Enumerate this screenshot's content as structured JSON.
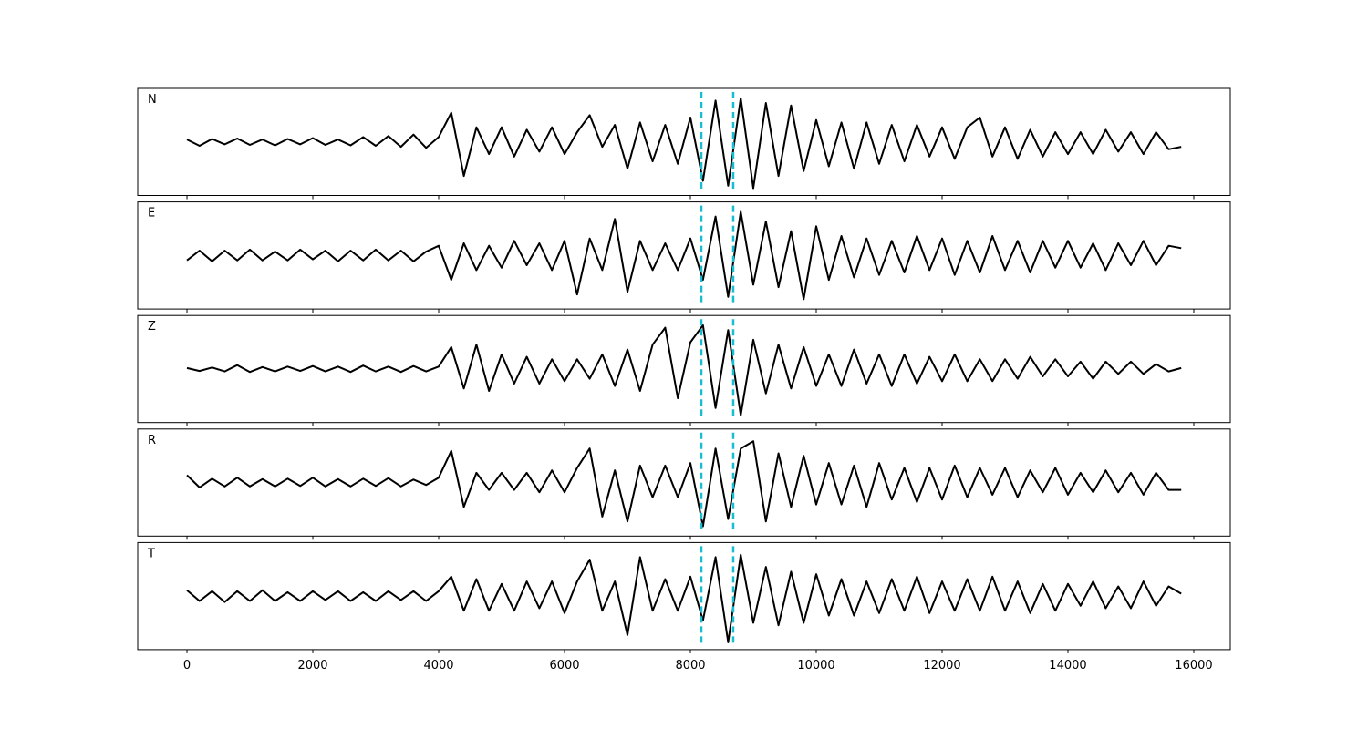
{
  "chart_data": {
    "type": "line",
    "x": [
      0,
      200,
      400,
      600,
      800,
      1000,
      1200,
      1400,
      1600,
      1800,
      2000,
      2200,
      2400,
      2600,
      2800,
      3000,
      3200,
      3400,
      3600,
      3800,
      4000,
      4200,
      4400,
      4600,
      4800,
      5000,
      5200,
      5400,
      5600,
      5800,
      6000,
      6200,
      6400,
      6600,
      6800,
      7000,
      7200,
      7400,
      7600,
      7800,
      8000,
      8200,
      8400,
      8600,
      8800,
      9000,
      9200,
      9400,
      9600,
      9800,
      10000,
      10200,
      10400,
      10600,
      10800,
      11000,
      11200,
      11400,
      11600,
      11800,
      12000,
      12200,
      12400,
      12600,
      12800,
      13000,
      13200,
      13400,
      13600,
      13800,
      14000,
      14200,
      14400,
      14600,
      14800,
      15000,
      15200,
      15400,
      15600,
      15800
    ],
    "xlim": [
      -783,
      16580
    ],
    "xticks": [
      0,
      2000,
      4000,
      6000,
      8000,
      10000,
      12000,
      14000,
      16000
    ],
    "ylim": [
      -1.1,
      1.1
    ],
    "line_color": "#000000",
    "vlines": [
      8174,
      8681
    ],
    "vline_color": "#17becf",
    "series": [
      {
        "name": "N",
        "values": [
          0.05,
          -0.08,
          0.06,
          -0.05,
          0.07,
          -0.06,
          0.05,
          -0.07,
          0.06,
          -0.05,
          0.08,
          -0.06,
          0.05,
          -0.07,
          0.1,
          -0.08,
          0.12,
          -0.1,
          0.15,
          -0.12,
          0.1,
          0.6,
          -0.7,
          0.3,
          -0.25,
          0.3,
          -0.3,
          0.25,
          -0.2,
          0.3,
          -0.25,
          0.2,
          0.55,
          -0.1,
          0.35,
          -0.55,
          0.4,
          -0.4,
          0.35,
          -0.45,
          0.5,
          -0.8,
          0.85,
          -0.9,
          0.9,
          -0.95,
          0.8,
          -0.7,
          0.75,
          -0.6,
          0.45,
          -0.5,
          0.4,
          -0.55,
          0.4,
          -0.45,
          0.35,
          -0.4,
          0.35,
          -0.3,
          0.3,
          -0.35,
          0.3,
          0.5,
          -0.3,
          0.3,
          -0.35,
          0.25,
          -0.3,
          0.2,
          -0.25,
          0.2,
          -0.25,
          0.25,
          -0.2,
          0.2,
          -0.25,
          0.2,
          -0.15,
          -0.1
        ]
      },
      {
        "name": "E",
        "values": [
          -0.1,
          0.1,
          -0.12,
          0.1,
          -0.1,
          0.12,
          -0.1,
          0.08,
          -0.1,
          0.12,
          -0.08,
          0.1,
          -0.12,
          0.1,
          -0.1,
          0.12,
          -0.1,
          0.1,
          -0.12,
          0.08,
          0.2,
          -0.5,
          0.25,
          -0.3,
          0.2,
          -0.25,
          0.3,
          -0.2,
          0.25,
          -0.3,
          0.3,
          -0.8,
          0.35,
          -0.3,
          0.75,
          -0.75,
          0.3,
          -0.3,
          0.25,
          -0.3,
          0.35,
          -0.5,
          0.8,
          -0.85,
          0.9,
          -0.6,
          0.7,
          -0.65,
          0.5,
          -0.9,
          0.6,
          -0.5,
          0.4,
          -0.45,
          0.35,
          -0.4,
          0.3,
          -0.35,
          0.4,
          -0.3,
          0.35,
          -0.4,
          0.3,
          -0.35,
          0.4,
          -0.3,
          0.3,
          -0.35,
          0.3,
          -0.25,
          0.3,
          -0.25,
          0.25,
          -0.3,
          0.25,
          -0.2,
          0.3,
          -0.2,
          0.2,
          0.15
        ]
      },
      {
        "name": "Z",
        "values": [
          0.02,
          -0.04,
          0.03,
          -0.05,
          0.08,
          -0.06,
          0.04,
          -0.05,
          0.05,
          -0.04,
          0.06,
          -0.05,
          0.05,
          -0.06,
          0.07,
          -0.05,
          0.05,
          -0.06,
          0.06,
          -0.05,
          0.05,
          0.45,
          -0.4,
          0.5,
          -0.45,
          0.3,
          -0.3,
          0.25,
          -0.3,
          0.2,
          -0.25,
          0.2,
          -0.2,
          0.3,
          -0.35,
          0.4,
          -0.45,
          0.5,
          0.85,
          -0.6,
          0.55,
          0.9,
          -0.8,
          0.8,
          -0.95,
          0.6,
          -0.5,
          0.5,
          -0.4,
          0.45,
          -0.35,
          0.3,
          -0.35,
          0.4,
          -0.3,
          0.3,
          -0.35,
          0.3,
          -0.3,
          0.25,
          -0.25,
          0.3,
          -0.25,
          0.2,
          -0.25,
          0.2,
          -0.2,
          0.25,
          -0.15,
          0.2,
          -0.15,
          0.15,
          -0.2,
          0.15,
          -0.1,
          0.15,
          -0.1,
          0.1,
          -0.05,
          0.02
        ]
      },
      {
        "name": "R",
        "values": [
          0.15,
          -0.1,
          0.08,
          -0.08,
          0.1,
          -0.08,
          0.07,
          -0.08,
          0.08,
          -0.07,
          0.1,
          -0.08,
          0.07,
          -0.08,
          0.08,
          -0.07,
          0.09,
          -0.08,
          0.06,
          -0.05,
          0.1,
          0.65,
          -0.5,
          0.2,
          -0.15,
          0.2,
          -0.15,
          0.2,
          -0.2,
          0.25,
          -0.2,
          0.3,
          0.7,
          -0.7,
          0.25,
          -0.8,
          0.35,
          -0.3,
          0.35,
          -0.3,
          0.4,
          -0.9,
          0.7,
          -0.75,
          0.7,
          0.85,
          -0.8,
          0.6,
          -0.5,
          0.55,
          -0.45,
          0.4,
          -0.45,
          0.35,
          -0.5,
          0.4,
          -0.35,
          0.3,
          -0.4,
          0.3,
          -0.35,
          0.35,
          -0.3,
          0.3,
          -0.25,
          0.3,
          -0.3,
          0.25,
          -0.2,
          0.3,
          -0.25,
          0.2,
          -0.2,
          0.25,
          -0.2,
          0.2,
          -0.25,
          0.2,
          -0.15,
          -0.15
        ]
      },
      {
        "name": "T",
        "values": [
          0.12,
          -0.1,
          0.1,
          -0.12,
          0.1,
          -0.1,
          0.12,
          -0.1,
          0.08,
          -0.1,
          0.1,
          -0.08,
          0.1,
          -0.1,
          0.08,
          -0.1,
          0.1,
          -0.08,
          0.1,
          -0.1,
          0.1,
          0.4,
          -0.3,
          0.35,
          -0.3,
          0.25,
          -0.3,
          0.3,
          -0.25,
          0.3,
          -0.35,
          0.3,
          0.75,
          -0.3,
          0.3,
          -0.8,
          0.8,
          -0.3,
          0.35,
          -0.3,
          0.4,
          -0.5,
          0.8,
          -0.95,
          0.85,
          -0.55,
          0.6,
          -0.6,
          0.5,
          -0.55,
          0.45,
          -0.4,
          0.35,
          -0.4,
          0.3,
          -0.35,
          0.35,
          -0.3,
          0.4,
          -0.35,
          0.3,
          -0.3,
          0.35,
          -0.3,
          0.4,
          -0.3,
          0.3,
          -0.35,
          0.25,
          -0.3,
          0.25,
          -0.2,
          0.3,
          -0.25,
          0.2,
          -0.25,
          0.3,
          -0.2,
          0.2,
          0.05
        ]
      }
    ]
  }
}
